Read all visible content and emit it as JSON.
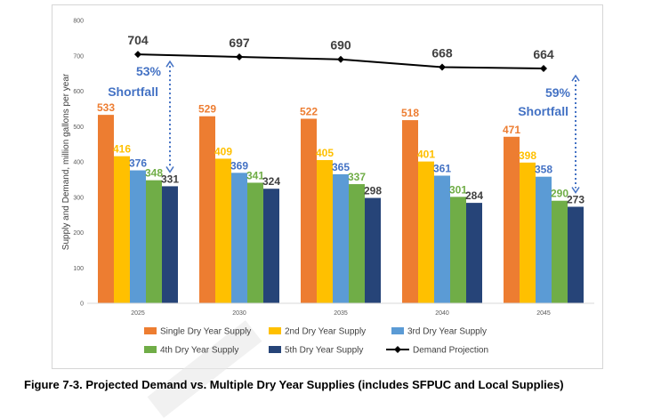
{
  "caption": "Figure 7-3. Projected Demand vs. Multiple Dry Year Supplies (includes SFPUC and Local Supplies)",
  "chart_data": {
    "type": "bar",
    "title": "",
    "ylabel": "Supply and Demand, million gallons per year",
    "xlabel": "",
    "ylim": [
      0,
      800
    ],
    "yticks": [
      0,
      100,
      200,
      300,
      400,
      500,
      600,
      700,
      800
    ],
    "categories": [
      "2025",
      "2030",
      "2035",
      "2040",
      "2045"
    ],
    "grid": false,
    "legend_position": "bottom",
    "series": [
      {
        "name": "Single Dry Year Supply",
        "color": "#ed7d31",
        "values": [
          533,
          529,
          522,
          518,
          471
        ]
      },
      {
        "name": "2nd Dry Year Supply",
        "color": "#ffc000",
        "values": [
          416,
          409,
          405,
          401,
          398
        ]
      },
      {
        "name": "3rd Dry Year Supply",
        "color": "#5b9bd5",
        "values": [
          376,
          369,
          365,
          361,
          358
        ]
      },
      {
        "name": "4th Dry Year Supply",
        "color": "#70ad47",
        "values": [
          348,
          341,
          337,
          301,
          290
        ]
      },
      {
        "name": "5th Dry Year Supply",
        "color": "#264478",
        "values": [
          331,
          324,
          298,
          284,
          273
        ]
      }
    ],
    "line_series": {
      "name": "Demand Projection",
      "color": "#000000",
      "values": [
        704,
        697,
        690,
        668,
        664
      ]
    },
    "annotations": [
      {
        "category": "2025",
        "percent": "53%",
        "label": "Shortfall"
      },
      {
        "category": "2045",
        "percent": "59%",
        "label": "Shortfall"
      }
    ],
    "label_colors": [
      "#ed7d31",
      "#ffc000",
      "#4472c4",
      "#70ad47",
      "#404040"
    ],
    "annotation_color": "#4472c4"
  }
}
